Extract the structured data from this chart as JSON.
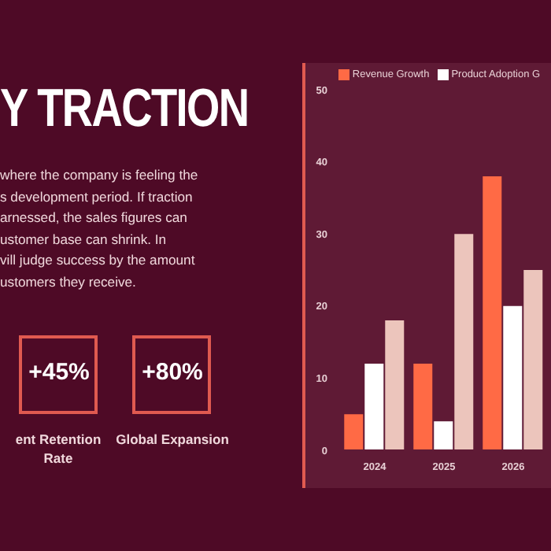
{
  "chart_data": {
    "type": "bar",
    "title": "Y TRACTION",
    "annotations": [
      "where the company is feeling the",
      "s development period. If traction",
      "arnessed, the sales figures can",
      "ustomer base can shrink. In",
      "vill judge success by the amount",
      "ustomers they receive.",
      "+45%",
      "ent Retention Rate",
      "+80%",
      "Global Expansion"
    ],
    "categories": [
      "2024",
      "2025",
      "2026"
    ],
    "series": [
      {
        "name": "Revenue Growth",
        "color": "#ff6a45",
        "values": [
          5,
          12,
          38
        ]
      },
      {
        "name": "Product Adoption G",
        "color": "#ffffff",
        "values": [
          12,
          4,
          20
        ]
      },
      {
        "color": "#ecc5bc",
        "values": [
          18,
          30,
          25
        ]
      }
    ],
    "ylim": [
      0,
      50
    ],
    "yticks": [
      0,
      10,
      20,
      30,
      40,
      50
    ],
    "grid": false,
    "legend": "top"
  }
}
